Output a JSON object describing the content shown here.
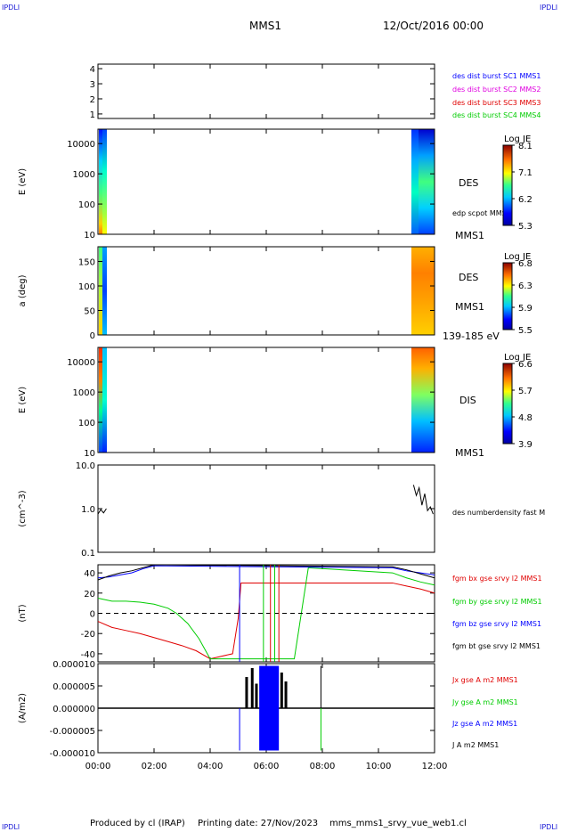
{
  "corner_label": "IPDLI",
  "header": {
    "title": "MMS1",
    "date": "12/Oct/2016 00:00"
  },
  "footer": {
    "produced_by": "Produced by cl (IRAP)",
    "printing_date": "Printing date: 27/Nov/2023",
    "file": "mms_mms1_srvy_vue_web1.cl"
  },
  "colors": {
    "black": "#000000",
    "blue": "#0000ff",
    "magenta": "#e000e0",
    "red": "#e00000",
    "green": "#00cc00"
  },
  "colorbar_title": "Log JE",
  "chart_data": [
    {
      "type": "line",
      "name": "burst-flags",
      "ylim": [
        0.7,
        4.3
      ],
      "yticks": [
        "1",
        "2",
        "3",
        "4"
      ],
      "legend": [
        {
          "label": "des dist burst SC1 MMS1",
          "color": "#0000ff"
        },
        {
          "label": "des dist burst SC2 MMS2",
          "color": "#e000e0"
        },
        {
          "label": "des dist burst SC3 MMS3",
          "color": "#e00000"
        },
        {
          "label": "des dist burst SC4 MMS4",
          "color": "#00cc00"
        }
      ]
    },
    {
      "type": "heatmap",
      "name": "des-energy",
      "ylabel": "E (eV)",
      "yscale": "log",
      "ylim": [
        10,
        30000
      ],
      "yticks": [
        "10",
        "100",
        "1000",
        "10000"
      ],
      "side_labels": [
        "DES",
        "edp scpot MMS1",
        "MMS1"
      ],
      "colorbar": {
        "ticks": [
          "8.1",
          "7.1",
          "6.2",
          "5.3"
        ],
        "min": 5.3,
        "max": 8.1
      }
    },
    {
      "type": "heatmap",
      "name": "des-pitch-angle",
      "ylabel": "a (deg)",
      "ylim": [
        0,
        180
      ],
      "yticks": [
        "0",
        "50",
        "100",
        "150"
      ],
      "side_labels": [
        "DES",
        "MMS1",
        "139-185 eV"
      ],
      "colorbar": {
        "ticks": [
          "6.8",
          "6.3",
          "5.9",
          "5.5"
        ],
        "min": 5.5,
        "max": 6.8
      }
    },
    {
      "type": "heatmap",
      "name": "dis-energy",
      "ylabel": "E (eV)",
      "yscale": "log",
      "ylim": [
        10,
        30000
      ],
      "yticks": [
        "10",
        "100",
        "1000",
        "10000"
      ],
      "side_labels": [
        "DIS",
        "MMS1"
      ],
      "colorbar": {
        "ticks": [
          "6.6",
          "5.7",
          "4.8",
          "3.9"
        ],
        "min": 3.9,
        "max": 6.6
      }
    },
    {
      "type": "line",
      "name": "number-density",
      "ylabel": "(cm^-3)",
      "yscale": "log",
      "ylim": [
        0.1,
        10
      ],
      "yticks": [
        "0.1",
        "1.0",
        "10.0"
      ],
      "legend": [
        {
          "label": "des numberdensity fast M",
          "color": "#000000"
        }
      ],
      "series": [
        {
          "name": "des numberdensity fast M",
          "x": [
            0.0,
            0.1,
            0.2,
            0.3
          ],
          "y": [
            0.75,
            0.95,
            0.8,
            1.0
          ]
        },
        {
          "name": "des numberdensity fast M",
          "x": [
            11.25,
            11.35,
            11.45,
            11.55,
            11.65,
            11.75,
            11.85,
            11.95
          ],
          "y": [
            3.5,
            2.0,
            3.0,
            1.2,
            2.2,
            0.9,
            1.1,
            0.75
          ]
        }
      ]
    },
    {
      "type": "line",
      "name": "magnetic-field",
      "ylabel": "(nT)",
      "ylim": [
        -48,
        48
      ],
      "yticks": [
        "-40",
        "-20",
        "0",
        "20",
        "40"
      ],
      "legend": [
        {
          "label": "fgm bx gse srvy l2 MMS1",
          "color": "#e00000"
        },
        {
          "label": "fgm by gse srvy l2 MMS1",
          "color": "#00cc00"
        },
        {
          "label": "fgm bz gse srvy l2 MMS1",
          "color": "#0000ff"
        },
        {
          "label": "fgm bt gse srvy l2 MMS1",
          "color": "#000000"
        }
      ],
      "series": [
        {
          "name": "fgm bx gse srvy l2 MMS1",
          "color": "#e00000",
          "x": [
            0,
            0.5,
            1,
            1.5,
            2,
            2.5,
            3,
            3.5,
            4,
            4.8,
            5.0,
            5.1,
            10.5,
            11,
            11.5,
            12
          ],
          "y": [
            -8,
            -14,
            -17,
            -20,
            -24,
            -28,
            -32,
            -37,
            -45,
            -40,
            -5,
            30,
            30,
            27,
            24,
            20
          ]
        },
        {
          "name": "fgm by gse srvy l2 MMS1",
          "color": "#00cc00",
          "x": [
            0,
            0.5,
            1,
            1.5,
            2,
            2.5,
            2.8,
            3.2,
            3.6,
            4.0,
            7.0,
            7.5,
            10.5,
            11,
            11.5,
            12
          ],
          "y": [
            15,
            12,
            12,
            11,
            9,
            5,
            0,
            -10,
            -25,
            -45,
            -45,
            45,
            40,
            35,
            31,
            28
          ]
        },
        {
          "name": "fgm bz gse srvy l2 MMS1",
          "color": "#0000ff",
          "x": [
            0,
            0.4,
            0.8,
            1.2,
            1.6,
            2.0,
            10.5,
            11,
            11.5,
            12
          ],
          "y": [
            35,
            36,
            38,
            40,
            44,
            47,
            45,
            42,
            40,
            38
          ]
        },
        {
          "name": "fgm bt gse srvy l2 MMS1",
          "color": "#000000",
          "x": [
            0,
            0.4,
            0.8,
            1.2,
            1.6,
            2.0,
            10.5,
            11,
            11.5,
            12
          ],
          "y": [
            33,
            37,
            40,
            42,
            45,
            48,
            46,
            43,
            39,
            35
          ]
        }
      ]
    },
    {
      "type": "line",
      "name": "current-density",
      "ylabel": "(A/m2)",
      "ylim": [
        -1e-05,
        1e-05
      ],
      "yticks": [
        "-0.000010",
        "-0.000005",
        "0.000000",
        "0.000005",
        "0.000010"
      ],
      "xticks": [
        "00:00",
        "02:00",
        "04:00",
        "06:00",
        "08:00",
        "10:00",
        "12:00"
      ],
      "xlim": [
        0,
        12
      ],
      "legend": [
        {
          "label": "Jx gse A m2 MMS1",
          "color": "#e00000"
        },
        {
          "label": "Jy gse A m2 MMS1",
          "color": "#00cc00"
        },
        {
          "label": "Jz gse A m2 MMS1",
          "color": "#0000ff"
        },
        {
          "label": "J A m2 MMS1",
          "color": "#000000"
        }
      ]
    }
  ]
}
